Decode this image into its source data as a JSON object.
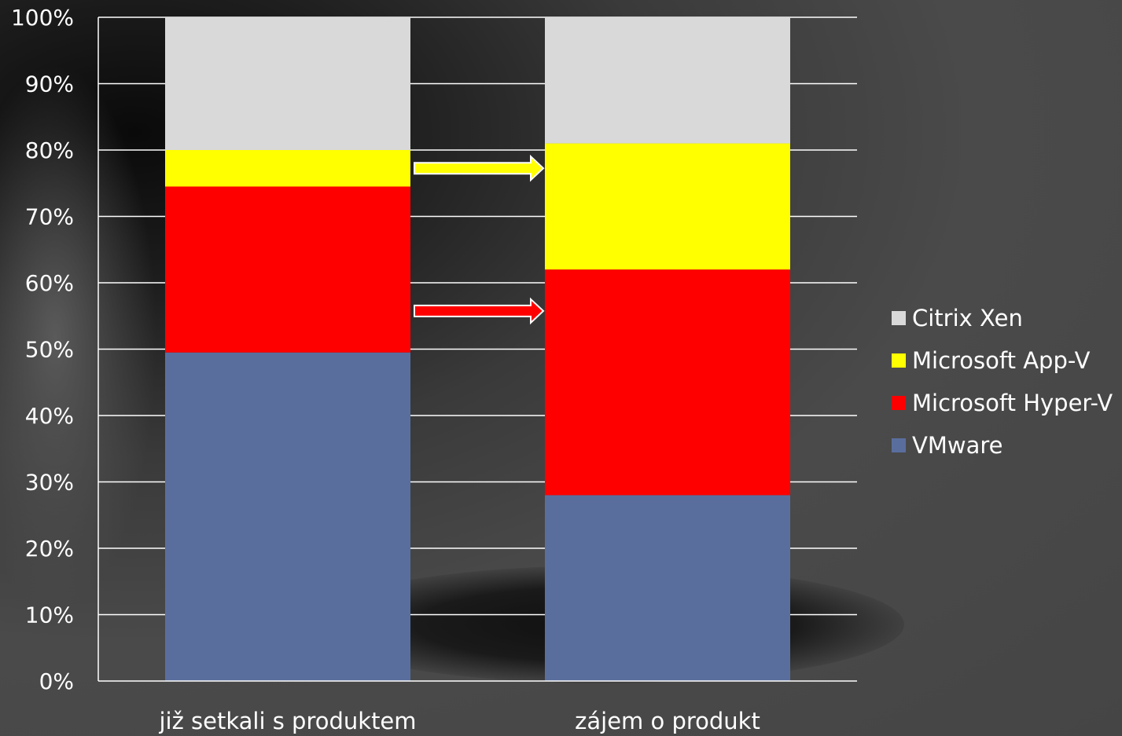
{
  "chart_data": {
    "type": "bar",
    "stacked": true,
    "normalized": true,
    "categories": [
      "již setkali s produktem",
      "zájem o produkt"
    ],
    "series": [
      {
        "name": "VMware",
        "color": "#5a6e9e",
        "values": [
          49.5,
          28
        ]
      },
      {
        "name": "Microsoft Hyper-V",
        "color": "#ff0000",
        "values": [
          25,
          34
        ]
      },
      {
        "name": "Microsoft App-V",
        "color": "#ffff00",
        "values": [
          5.5,
          19
        ]
      },
      {
        "name": "Citrix Xen",
        "color": "#d9d9d9",
        "values": [
          20,
          19
        ]
      }
    ],
    "y_ticks": [
      "0%",
      "10%",
      "20%",
      "30%",
      "40%",
      "50%",
      "60%",
      "70%",
      "80%",
      "90%",
      "100%"
    ],
    "ylim": [
      0,
      100
    ],
    "grid": true,
    "legend_position": "right",
    "arrows": [
      {
        "series": "Microsoft App-V",
        "color": "#ffff00",
        "direction": "right"
      },
      {
        "series": "Microsoft Hyper-V",
        "color": "#ff0000",
        "direction": "right"
      }
    ]
  }
}
